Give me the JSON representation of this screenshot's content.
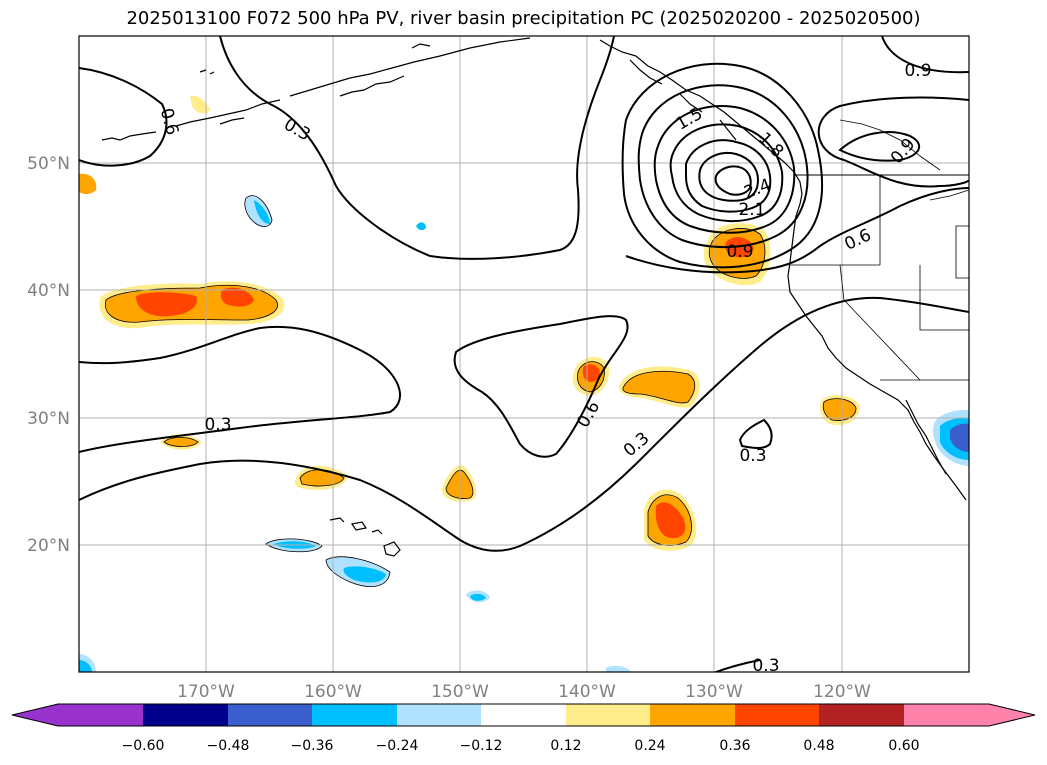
{
  "title": "2025013100 F072 500 hPa PV, river basin precipitation PC (2025020200 - 2025020500)",
  "map": {
    "lon_ticks": [
      "170°W",
      "160°W",
      "150°W",
      "140°W",
      "130°W",
      "120°W"
    ],
    "lat_ticks": [
      "50°N",
      "40°N",
      "30°N",
      "20°N"
    ],
    "contour_labels": [
      "0.9",
      "0.3",
      "0.6",
      "0.3",
      "0.6",
      "0.3",
      "0.3",
      "0.9",
      "2.1",
      "2.4",
      "1.5",
      "1.8",
      "0.6",
      "0.9",
      "0.3"
    ]
  },
  "colorbar": {
    "ticks": [
      "−0.60",
      "−0.48",
      "−0.36",
      "−0.24",
      "−0.12",
      "0.12",
      "0.24",
      "0.36",
      "0.48",
      "0.60"
    ],
    "colors": [
      "#9932cc",
      "#00008b",
      "#3a5fcd",
      "#00bfff",
      "#b0e2ff",
      "#ffffff",
      "#ffec8b",
      "#ffa500",
      "#ff4500",
      "#b22222",
      "#ff82ab"
    ]
  }
}
